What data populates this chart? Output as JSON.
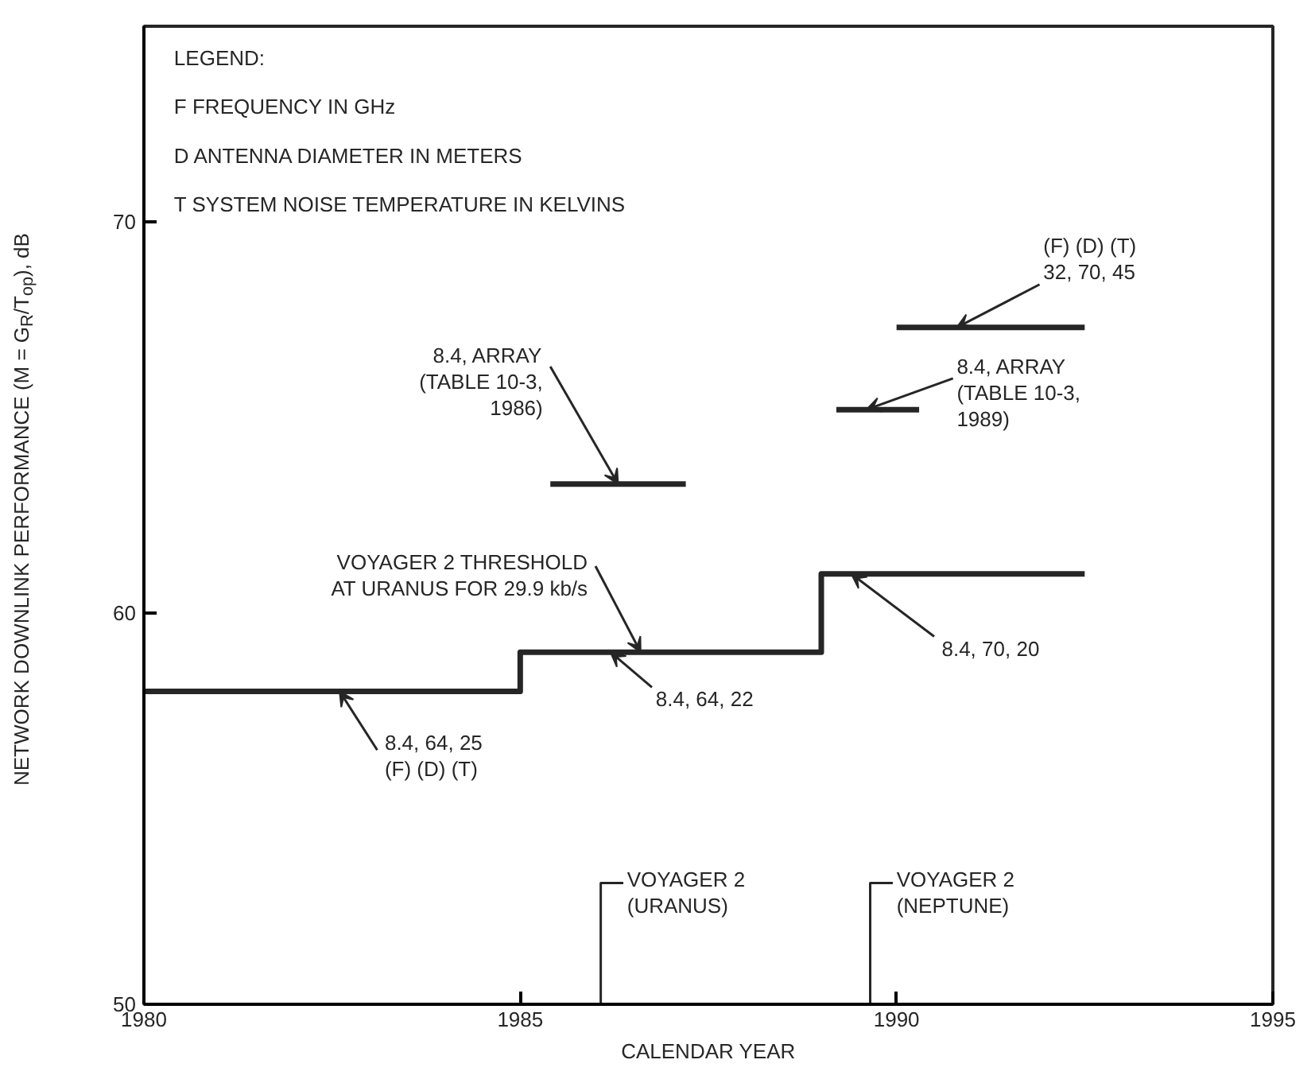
{
  "chart_data": {
    "type": "line",
    "xlabel": "CALENDAR YEAR",
    "ylabel": "NETWORK DOWNLINK PERFORMANCE (M = G$_{R}$/T$_{op}$), dB",
    "xlim": [
      1980,
      1995
    ],
    "ylim": [
      50,
      75
    ],
    "xticks": [
      1980,
      1985,
      1990,
      1995
    ],
    "yticks": [
      50,
      60,
      70
    ],
    "series": [
      {
        "color": "#262626",
        "x": [
          1980,
          1985,
          1985,
          1989,
          1989,
          1992.5
        ],
        "values": [
          58,
          58,
          59,
          59,
          61,
          61
        ]
      },
      {
        "color": "#262626",
        "x": [
          1985.4,
          1987.2
        ],
        "values": [
          63.3,
          63.3
        ]
      },
      {
        "color": "#262626",
        "x": [
          1989.2,
          1990.3
        ],
        "values": [
          65.2,
          65.2
        ]
      },
      {
        "color": "#262626",
        "x": [
          1990.0,
          1992.5
        ],
        "values": [
          67.3,
          67.3
        ]
      }
    ],
    "annotations": [
      "LEGEND:",
      "F    FREQUENCY IN GHz",
      "D    ANTENNA DIAMETER IN METERS",
      "T    SYSTEM NOISE TEMPERATURE IN KELVINS",
      {
        "text": "8.4, ARRAY\n(TABLE 10-3,\n1986)",
        "x": 1986.3,
        "y": 63.3
      },
      {
        "text": "(F)  (D)  (T)\n32, 70, 45",
        "x": 1990.8,
        "y": 67.3
      },
      {
        "text": "8.4, ARRAY\n(TABLE 10-3,\n1989)",
        "x": 1989.6,
        "y": 65.2
      },
      {
        "text": "VOYAGER 2 THRESHOLD\nAT URANUS FOR 29.9 kb/s",
        "x": 1986.6,
        "y": 59
      },
      {
        "text": "8.4, 64, 22",
        "x": 1986.2,
        "y": 59
      },
      {
        "text": "8.4, 70, 20",
        "x": 1989.4,
        "y": 61
      },
      {
        "text": "8.4, 64, 25\n(F)  (D)  (T)",
        "x": 1982.6,
        "y": 58
      }
    ],
    "ref_lines": [
      {
        "axis": "x",
        "value": 1986.07,
        "label": "VOYAGER 2\n(URANUS)"
      },
      {
        "axis": "x",
        "value": 1989.65,
        "label": "VOYAGER 2\n(NEPTUNE)"
      }
    ]
  }
}
